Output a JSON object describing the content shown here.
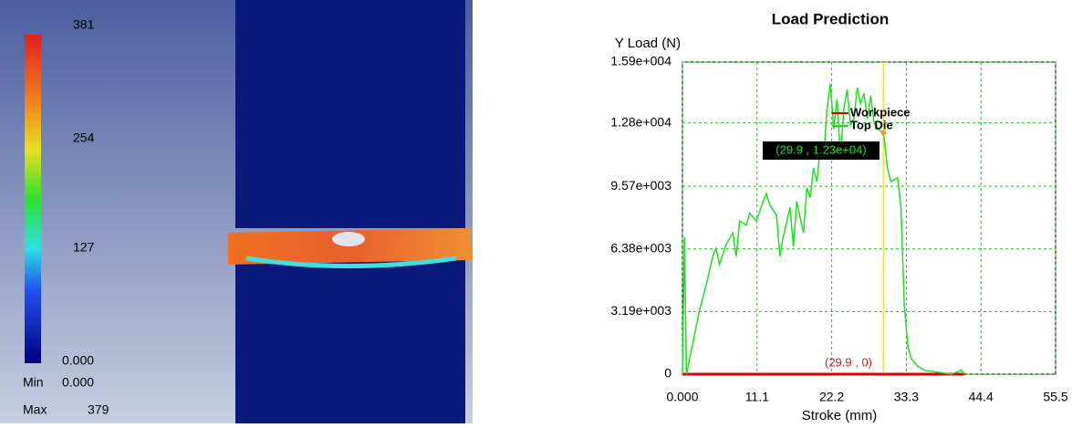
{
  "contour_legend": {
    "labels": [
      "381",
      "254",
      "127",
      "0.000"
    ],
    "min_label": "Min",
    "min_value": "0.000",
    "max_label": "Max",
    "max_value": "379"
  },
  "chart_data": {
    "type": "line",
    "title": "Load Prediction",
    "y_label": "Y Load (N)",
    "x_label": "Stroke (mm)",
    "xlim": [
      0,
      55.5
    ],
    "ylim": [
      0,
      15900
    ],
    "xticks": [
      {
        "value": 0,
        "label": "0.000"
      },
      11.1,
      22.2,
      33.3,
      44.4,
      55.5
    ],
    "yticks": [
      0,
      {
        "value": 3190,
        "label": "3.19e+003"
      },
      {
        "value": 6380,
        "label": "6.38e+003"
      },
      {
        "value": 9570,
        "label": "9.57e+003"
      },
      {
        "value": 12800,
        "label": "1.28e+004"
      },
      {
        "value": 15900,
        "label": "1.59e+004"
      }
    ],
    "grid": true,
    "series": [
      {
        "name": "Workpiece",
        "color": "#e00000",
        "x": [
          0,
          42
        ],
        "values": [
          0,
          0
        ]
      },
      {
        "name": "Top Die",
        "color": "#22dd22",
        "x": [
          0,
          0.3,
          0.6,
          1.5,
          2.5,
          3.5,
          4.5,
          5,
          5.5,
          6.5,
          7.5,
          8,
          8.5,
          9.5,
          10,
          11,
          12,
          12.5,
          13,
          14,
          14.5,
          15,
          16,
          16.5,
          17,
          18,
          18.5,
          19,
          19.5,
          20,
          20.5,
          21,
          21.5,
          22,
          22.5,
          23,
          23.5,
          24,
          24.5,
          25,
          25.5,
          26,
          26.5,
          27,
          27.5,
          28,
          28.5,
          29,
          29.9,
          30.5,
          31,
          32,
          32.5,
          33,
          33.5,
          34,
          35,
          36,
          38,
          40,
          41.5,
          42
        ],
        "values": [
          0,
          7000,
          0,
          1500,
          3200,
          4500,
          6000,
          6400,
          5600,
          6600,
          7200,
          6000,
          7800,
          7600,
          8200,
          7800,
          8800,
          9200,
          8600,
          8100,
          6000,
          7000,
          8500,
          6500,
          8800,
          7200,
          9500,
          9000,
          10500,
          9800,
          11500,
          11000,
          13500,
          14800,
          12500,
          14000,
          11000,
          13500,
          14500,
          12700,
          13000,
          14600,
          13800,
          14300,
          13000,
          14200,
          12800,
          12500,
          12300,
          10500,
          9800,
          10000,
          8500,
          3500,
          1500,
          800,
          400,
          200,
          100,
          0,
          200,
          0
        ]
      }
    ],
    "cursor_x": 29.9,
    "annotations": [
      "(29.9 , 1.23e+04)",
      "(29.9 , 0)"
    ]
  }
}
